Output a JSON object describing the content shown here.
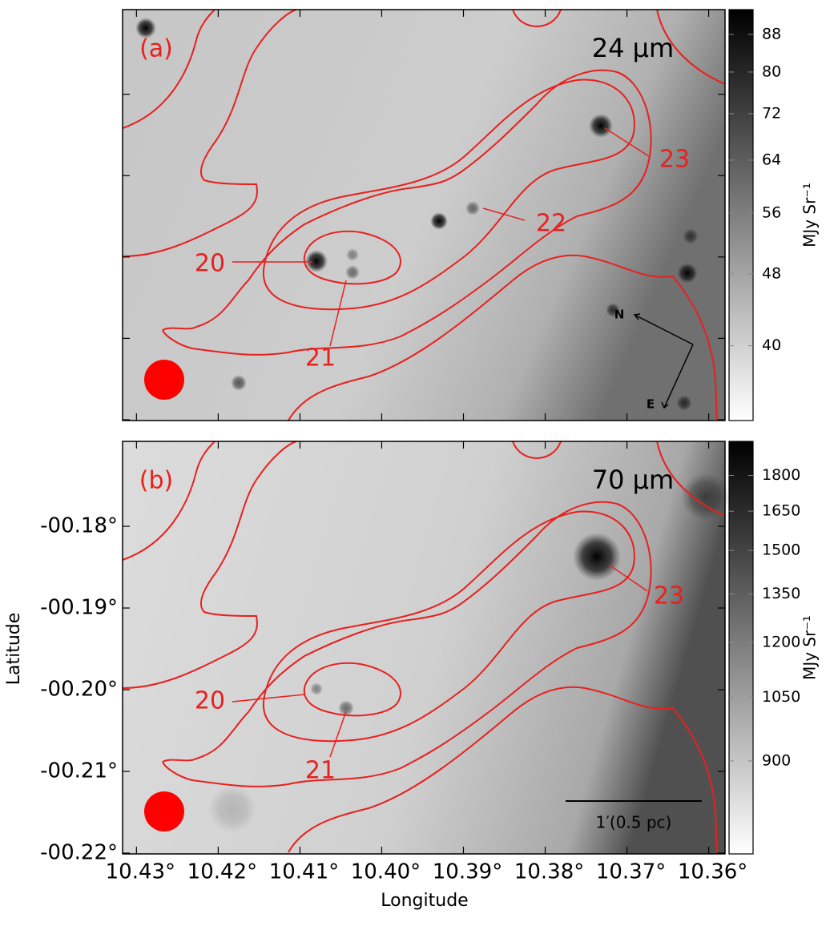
{
  "chart_data": [
    {
      "type": "image",
      "title": "24 μm",
      "panel_label": "(a)",
      "xlim": [
        10.4317,
        10.358
      ],
      "ylim": [
        -0.2201,
        -0.1696
      ],
      "xticks": [
        10.43,
        10.42,
        10.41,
        10.4,
        10.39,
        10.38,
        10.37,
        10.36
      ],
      "yticks": [
        -0.18,
        -0.19,
        -0.2,
        -0.21,
        -0.22
      ],
      "show_tick_labels": false,
      "annotations": [
        "20",
        "21",
        "22",
        "23"
      ],
      "compass": [
        "N",
        "E"
      ],
      "colorbar": {
        "label": "MJy Sr⁻¹",
        "lim": [
          33.1,
          93.7
        ],
        "log": true,
        "ticks": [
          88,
          80,
          72,
          64,
          56,
          48,
          40
        ]
      }
    },
    {
      "type": "image",
      "title": "70 μm",
      "panel_label": "(b)",
      "xlabel": "Longitude",
      "ylabel": "Latitude",
      "xlim": [
        10.4317,
        10.358
      ],
      "ylim": [
        -0.2201,
        -0.1696
      ],
      "xticks": [
        {
          "value": 10.43,
          "label": "10.43°"
        },
        {
          "value": 10.42,
          "label": "10.42°"
        },
        {
          "value": 10.41,
          "label": "10.41°"
        },
        {
          "value": 10.4,
          "label": "10.40°"
        },
        {
          "value": 10.39,
          "label": "10.39°"
        },
        {
          "value": 10.38,
          "label": "10.38°"
        },
        {
          "value": 10.37,
          "label": "10.37°"
        },
        {
          "value": 10.36,
          "label": "10.36°"
        }
      ],
      "yticks": [
        {
          "value": -0.18,
          "label": "-00.18°"
        },
        {
          "value": -0.19,
          "label": "-00.19°"
        },
        {
          "value": -0.2,
          "label": "-00.20°"
        },
        {
          "value": -0.21,
          "label": "-00.21°"
        },
        {
          "value": -0.22,
          "label": "-00.22°"
        }
      ],
      "show_tick_labels": true,
      "annotations": [
        "20",
        "21",
        "23"
      ],
      "scale_bar": "1′(0.5 pc)",
      "colorbar": {
        "label": "MJy Sr⁻¹",
        "lim": [
          718,
          1955
        ],
        "log": true,
        "ticks": [
          1800,
          1650,
          1500,
          1350,
          1200,
          1050,
          900
        ]
      }
    }
  ]
}
